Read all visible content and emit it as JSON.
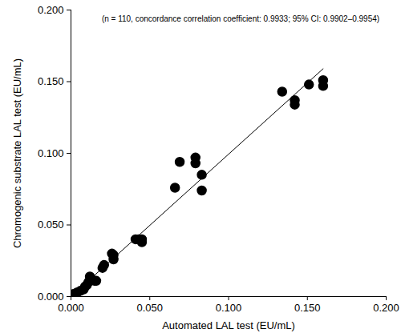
{
  "chart_data": {
    "type": "scatter",
    "annotation": "(n = 110, concordance correlation coefficient: 0.9933; 95% CI: 0.9902–0.9954)",
    "x_label": "Automated LAL test (EU/mL)",
    "y_label": "Chromogenic substrate LAL test (EU/mL)",
    "xlim": [
      0,
      0.2
    ],
    "ylim": [
      0,
      0.2
    ],
    "xticks": [
      {
        "value": 0,
        "label": "0.000"
      },
      {
        "value": 0.05,
        "label": "0.050"
      },
      {
        "value": 0.1,
        "label": "0.100"
      },
      {
        "value": 0.15,
        "label": "0.150"
      },
      {
        "value": 0.2,
        "label": "0.200"
      }
    ],
    "yticks": [
      {
        "value": 0,
        "label": "0.000"
      },
      {
        "value": 0.05,
        "label": "0.050"
      },
      {
        "value": 0.1,
        "label": "0.100"
      },
      {
        "value": 0.15,
        "label": "0.150"
      },
      {
        "value": 0.2,
        "label": "0.200"
      }
    ],
    "grid": false,
    "series": [
      {
        "type": "scatter",
        "color": "#000000",
        "marker": "circle",
        "x": [
          0.001,
          0.002,
          0.003,
          0.004,
          0.006,
          0.008,
          0.009,
          0.01,
          0.011,
          0.012,
          0.013,
          0.015,
          0.016,
          0.02,
          0.021,
          0.026,
          0.027,
          0.027,
          0.041,
          0.043,
          0.045,
          0.045,
          0.066,
          0.069,
          0.079,
          0.079,
          0.083,
          0.083,
          0.134,
          0.142,
          0.142,
          0.151,
          0.16,
          0.16
        ],
        "values": [
          0.001,
          0.002,
          0.002,
          0.003,
          0.004,
          0.005,
          0.007,
          0.008,
          0.01,
          0.014,
          0.012,
          0.011,
          0.011,
          0.02,
          0.022,
          0.03,
          0.026,
          0.029,
          0.04,
          0.04,
          0.038,
          0.04,
          0.076,
          0.094,
          0.097,
          0.093,
          0.085,
          0.074,
          0.143,
          0.137,
          0.134,
          0.148,
          0.151,
          0.147
        ]
      },
      {
        "type": "line",
        "color": "#000000",
        "line_style": "solid",
        "x": [
          0,
          0.16
        ],
        "values": [
          0,
          0.159
        ]
      }
    ]
  }
}
